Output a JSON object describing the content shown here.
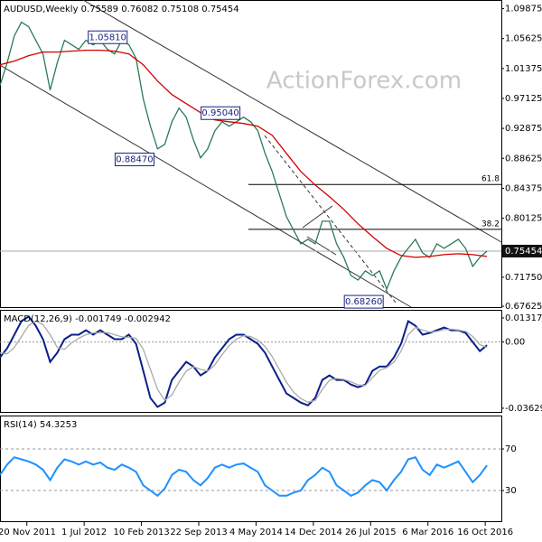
{
  "chart_data": [
    {
      "type": "line",
      "title": "AUDUSD,Weekly  0.75589 0.76082 0.75108 0.75454",
      "watermark": "ActionForex.com",
      "xlim": [
        0,
        280
      ],
      "ylim": [
        0.675,
        1.111
      ],
      "yticks": [
        1.09875,
        1.05625,
        1.01375,
        0.97125,
        0.92875,
        0.88625,
        0.84375,
        0.80125,
        {
          "value": 0.7175,
          "label": "0.71750"
        },
        0.67625
      ],
      "series": [
        {
          "color": "#2b7a55",
          "x": [
            0,
            4,
            8,
            12,
            16,
            20,
            24,
            28,
            32,
            36,
            40,
            44,
            48,
            52,
            56,
            60,
            64,
            68,
            72,
            76,
            80,
            84,
            88,
            92,
            96,
            100,
            104,
            108,
            112,
            116,
            120,
            124,
            128,
            132,
            136,
            140,
            144,
            148,
            152,
            156,
            160,
            164,
            168,
            172,
            176,
            180,
            184,
            188,
            192,
            196,
            200,
            204,
            208,
            212,
            216,
            220,
            224,
            228,
            232,
            236,
            240,
            244,
            248,
            252,
            256,
            260,
            264,
            268,
            272
          ],
          "values": [
            0.9896,
            1.0217,
            1.0602,
            1.0795,
            1.0731,
            1.0538,
            1.0345,
            0.9832,
            1.0217,
            1.0538,
            1.0474,
            1.041,
            1.0538,
            1.0474,
            1.0538,
            1.041,
            1.0345,
            1.0538,
            1.0474,
            1.0281,
            0.9704,
            0.9319,
            0.8997,
            0.9061,
            0.9382,
            0.9575,
            0.9447,
            0.9126,
            0.8869,
            0.8997,
            0.9254,
            0.9382,
            0.9319,
            0.9382,
            0.9447,
            0.9382,
            0.9254,
            0.8933,
            0.8676,
            0.8355,
            0.8034,
            0.7841,
            0.7649,
            0.7713,
            0.7649,
            0.797,
            0.797,
            0.7649,
            0.7456,
            0.7199,
            0.7135,
            0.7264,
            0.7199,
            0.7264,
            0.7007,
            0.7264,
            0.7456,
            0.7585,
            0.7713,
            0.7521,
            0.7456,
            0.7649,
            0.7585,
            0.7649,
            0.7713,
            0.7585,
            0.7328,
            0.7456,
            0.75454
          ]
        },
        {
          "color": "#d40000",
          "x": [
            0,
            8,
            16,
            24,
            32,
            40,
            48,
            56,
            64,
            72,
            80,
            88,
            96,
            104,
            112,
            120,
            128,
            136,
            144,
            152,
            160,
            168,
            176,
            184,
            192,
            200,
            208,
            216,
            224,
            232,
            240,
            248,
            256,
            264,
            272
          ],
          "values": [
            1.0191,
            1.0243,
            1.032,
            1.0371,
            1.0371,
            1.0384,
            1.0397,
            1.0397,
            1.0384,
            1.0345,
            1.0191,
            0.996,
            0.9768,
            0.9639,
            0.9511,
            0.9408,
            0.9382,
            0.9357,
            0.9319,
            0.919,
            0.8933,
            0.8676,
            0.8484,
            0.8317,
            0.8137,
            0.7932,
            0.7752,
            0.7585,
            0.7482,
            0.7456,
            0.7469,
            0.7495,
            0.7508,
            0.7495,
            0.7469
          ]
        }
      ],
      "current_price": 0.75454,
      "annotations": [
        {
          "text": "1.05810",
          "x": 71,
          "value": 1.0581
        },
        {
          "text": "0.95040",
          "x": 134,
          "value": 0.9504
        },
        {
          "text": "0.88470",
          "x": 86,
          "value": 0.8847
        },
        {
          "text": "0.68260",
          "x": 214,
          "value": 0.6826
        }
      ],
      "fib_levels": [
        {
          "ratio": 61.8,
          "price": 0.8491
        },
        {
          "ratio": 38.2,
          "price": 0.7854
        }
      ]
    },
    {
      "type": "line",
      "title": "MACD(12,26,9) -0.001749 -0.002942",
      "xlim": [
        0,
        280
      ],
      "ylim": [
        -0.0388,
        0.0176
      ],
      "yticks": [
        0.013175,
        {
          "value": 0,
          "label": "0.00"
        },
        -0.036292
      ],
      "series": [
        {
          "color": "#0b1f8a",
          "x": [
            0,
            4,
            8,
            12,
            16,
            20,
            24,
            28,
            32,
            36,
            40,
            44,
            48,
            52,
            56,
            60,
            64,
            68,
            72,
            76,
            80,
            84,
            88,
            92,
            96,
            100,
            104,
            108,
            112,
            116,
            120,
            124,
            128,
            132,
            136,
            140,
            144,
            148,
            152,
            156,
            160,
            164,
            168,
            172,
            176,
            180,
            184,
            188,
            192,
            196,
            200,
            204,
            208,
            212,
            216,
            220,
            224,
            228,
            232,
            236,
            240,
            244,
            248,
            252,
            256,
            260,
            264,
            268,
            272
          ],
          "values": [
            -0.0084,
            -0.0035,
            0.004,
            0.0114,
            0.0139,
            0.0089,
            0.0015,
            -0.0109,
            -0.0059,
            0.0015,
            0.004,
            0.004,
            0.0064,
            0.004,
            0.0064,
            0.004,
            0.0015,
            0.0015,
            0.004,
            -0.001,
            -0.0158,
            -0.0307,
            -0.0356,
            -0.0332,
            -0.0208,
            -0.0158,
            -0.0109,
            -0.0134,
            -0.0183,
            -0.0158,
            -0.0084,
            -0.0035,
            0.0015,
            0.004,
            0.004,
            0.0015,
            -0.001,
            -0.0059,
            -0.0134,
            -0.0208,
            -0.0282,
            -0.0307,
            -0.0332,
            -0.0347,
            -0.0307,
            -0.0208,
            -0.0183,
            -0.0208,
            -0.0208,
            -0.0233,
            -0.0248,
            -0.0233,
            -0.0158,
            -0.0134,
            -0.0134,
            -0.0084,
            -0.001,
            0.0114,
            0.0089,
            0.004,
            0.005,
            0.0064,
            0.0079,
            0.0064,
            0.0064,
            0.005,
            0.0,
            -0.005,
            -0.001749
          ]
        },
        {
          "color": "#aaaaaa",
          "x": [
            0,
            4,
            8,
            12,
            16,
            20,
            24,
            28,
            32,
            36,
            40,
            44,
            48,
            52,
            56,
            60,
            64,
            68,
            72,
            76,
            80,
            84,
            88,
            92,
            96,
            100,
            104,
            108,
            112,
            116,
            120,
            124,
            128,
            132,
            136,
            140,
            144,
            148,
            152,
            156,
            160,
            164,
            168,
            172,
            176,
            180,
            184,
            188,
            192,
            196,
            200,
            204,
            208,
            212,
            216,
            220,
            224,
            228,
            232,
            236,
            240,
            244,
            248,
            252,
            256,
            260,
            264,
            268,
            272
          ],
          "values": [
            -0.006,
            -0.0065,
            -0.003,
            0.003,
            0.009,
            0.0115,
            0.0095,
            0.004,
            -0.003,
            -0.004,
            -0.0005,
            0.002,
            0.004,
            0.005,
            0.005,
            0.0052,
            0.004,
            0.0028,
            0.0025,
            0.002,
            -0.004,
            -0.015,
            -0.026,
            -0.032,
            -0.029,
            -0.022,
            -0.016,
            -0.0135,
            -0.015,
            -0.016,
            -0.0125,
            -0.007,
            -0.002,
            0.0015,
            0.0035,
            0.003,
            0.001,
            -0.0025,
            -0.008,
            -0.015,
            -0.022,
            -0.0275,
            -0.031,
            -0.033,
            -0.032,
            -0.026,
            -0.021,
            -0.02,
            -0.0205,
            -0.0218,
            -0.0235,
            -0.0238,
            -0.0195,
            -0.0155,
            -0.014,
            -0.011,
            -0.005,
            0.004,
            0.008,
            0.0065,
            0.0055,
            0.0058,
            0.0068,
            0.007,
            0.0065,
            0.0058,
            0.003,
            -0.0015,
            -0.002942
          ]
        }
      ]
    },
    {
      "type": "line",
      "title": "RSI(14) 54.3253",
      "xlim": [
        0,
        280
      ],
      "ylim": [
        -0.4,
        102.2
      ],
      "yticks": [
        70,
        30
      ],
      "grid": true,
      "xticks": [
        {
          "value": 15,
          "label": "20 Nov 2011"
        },
        {
          "value": 47,
          "label": "1 Jul 2012"
        },
        {
          "value": 79,
          "label": "10 Feb 2013"
        },
        {
          "value": 111,
          "label": "22 Sep 2013"
        },
        {
          "value": 143,
          "label": "4 May 2014"
        },
        {
          "value": 175,
          "label": "14 Dec 2014"
        },
        {
          "value": 207,
          "label": "26 Jul 2015"
        },
        {
          "value": 239,
          "label": "6 Mar 2016"
        },
        {
          "value": 271,
          "label": "16 Oct 2016"
        }
      ],
      "series": [
        {
          "color": "#1e90ff",
          "x": [
            0,
            4,
            8,
            12,
            16,
            20,
            24,
            28,
            32,
            36,
            40,
            44,
            48,
            52,
            56,
            60,
            64,
            68,
            72,
            76,
            80,
            84,
            88,
            92,
            96,
            100,
            104,
            108,
            112,
            116,
            120,
            124,
            128,
            132,
            136,
            140,
            144,
            148,
            152,
            156,
            160,
            164,
            168,
            172,
            176,
            180,
            184,
            188,
            192,
            196,
            200,
            204,
            208,
            212,
            216,
            220,
            224,
            228,
            232,
            236,
            240,
            244,
            248,
            252,
            256,
            260,
            264,
            268,
            272
          ],
          "values": [
            45,
            55,
            62,
            60,
            58,
            55,
            50,
            40,
            52,
            60,
            58,
            55,
            58,
            55,
            57,
            52,
            50,
            55,
            52,
            48,
            35,
            30,
            25,
            32,
            45,
            50,
            48,
            40,
            35,
            42,
            52,
            55,
            52,
            55,
            56,
            52,
            48,
            35,
            30,
            25,
            25,
            28,
            30,
            40,
            45,
            52,
            48,
            35,
            30,
            25,
            28,
            35,
            40,
            38,
            30,
            40,
            48,
            60,
            62,
            50,
            45,
            55,
            52,
            55,
            58,
            48,
            38,
            45,
            54.3253
          ]
        }
      ]
    }
  ]
}
